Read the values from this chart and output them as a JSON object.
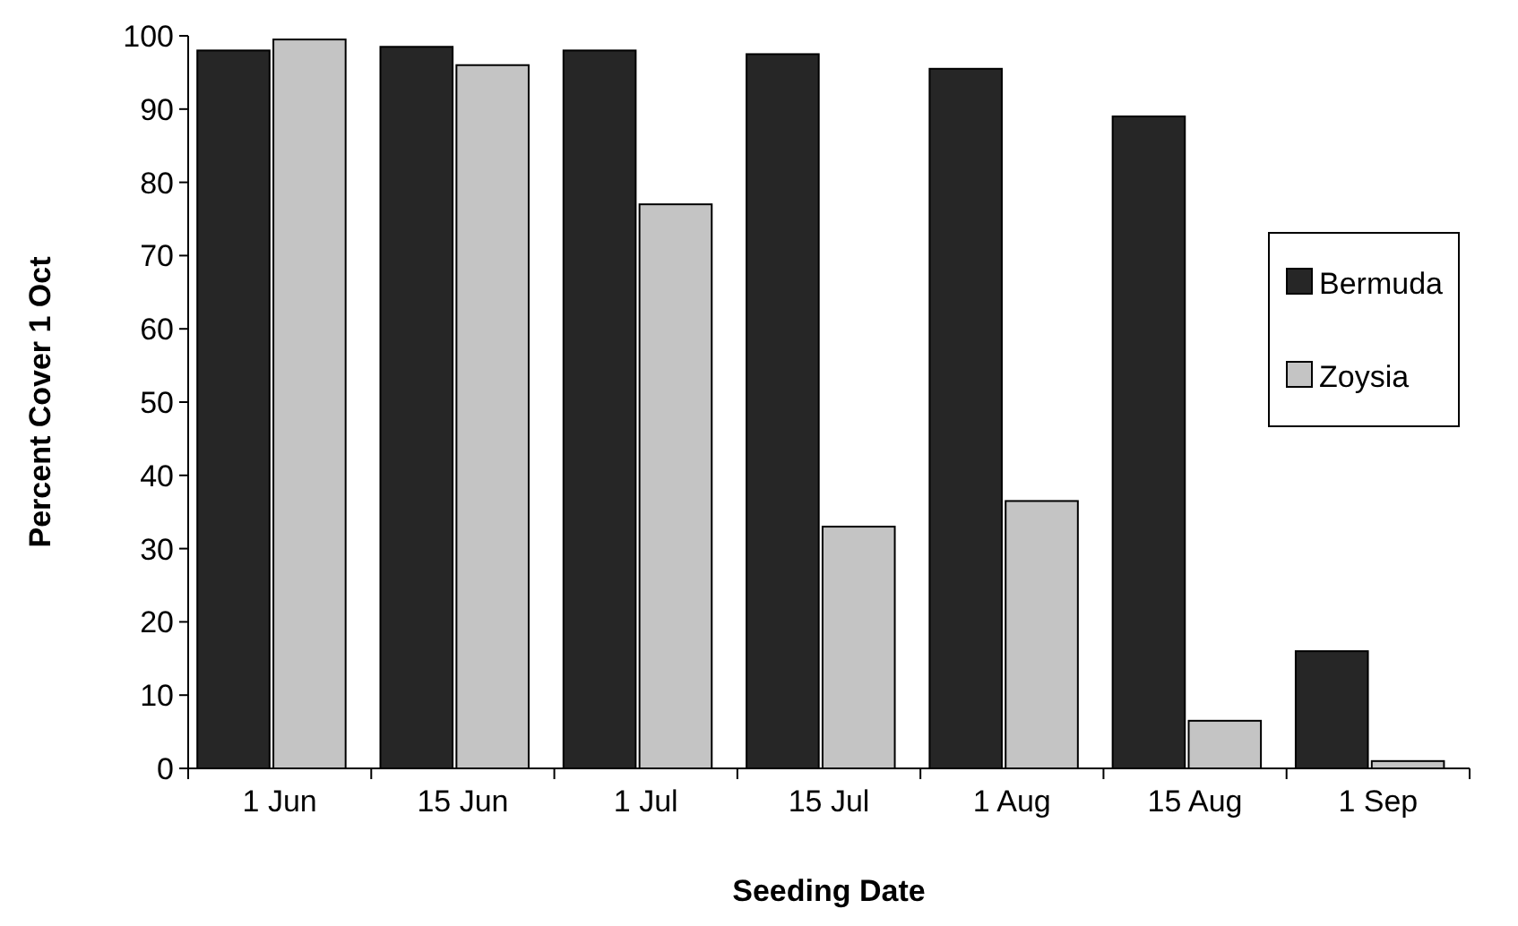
{
  "chart_data": {
    "type": "bar",
    "xlabel": "Seeding Date",
    "ylabel": "Percent Cover 1 Oct",
    "categories": [
      "1 Jun",
      "15 Jun",
      "1 Jul",
      "15 Jul",
      "1 Aug",
      "15 Aug",
      "1 Sep"
    ],
    "series": [
      {
        "name": "Bermuda",
        "color": "#262626",
        "values": [
          98,
          98.5,
          98,
          97.5,
          95.5,
          89,
          16
        ]
      },
      {
        "name": "Zoysia",
        "color": "#c4c4c4",
        "values": [
          99.5,
          96,
          77,
          33,
          36.5,
          6.5,
          1
        ]
      }
    ],
    "ylim": [
      0,
      100
    ],
    "yticks": [
      0,
      10,
      20,
      30,
      40,
      50,
      60,
      70,
      80,
      90,
      100
    ],
    "grid": false,
    "legend": "right"
  }
}
